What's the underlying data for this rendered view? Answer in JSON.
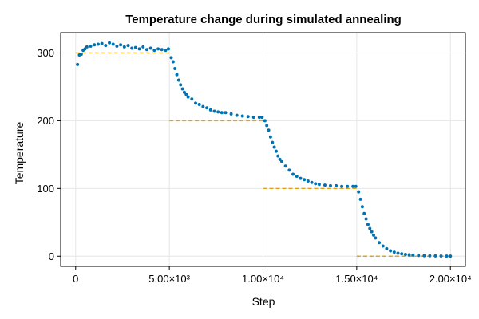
{
  "chart_data": {
    "type": "scatter",
    "title": "Temperature change during simulated annealing",
    "xlabel": "Step",
    "ylabel": "Temperature",
    "xlim": [
      -800,
      20800
    ],
    "ylim": [
      -15,
      330
    ],
    "x_ticks": [
      {
        "value": 0,
        "label": "0"
      },
      {
        "value": 5000,
        "label": "5.00×10³"
      },
      {
        "value": 10000,
        "label": "1.00×10⁴"
      },
      {
        "value": 15000,
        "label": "1.50×10⁴"
      },
      {
        "value": 20000,
        "label": "2.00×10⁴"
      }
    ],
    "y_ticks": [
      {
        "value": 0,
        "label": "0"
      },
      {
        "value": 100,
        "label": "100"
      },
      {
        "value": 200,
        "label": "200"
      },
      {
        "value": 300,
        "label": "300"
      }
    ],
    "grid": true,
    "legend": "none",
    "colors": {
      "points": "#0072b2",
      "targets": "#e6a11b"
    },
    "series": [
      {
        "kind": "points",
        "x": [
          100,
          200,
          300,
          400,
          500,
          600,
          800,
          1000,
          1200,
          1400,
          1600,
          1800,
          2000,
          2200,
          2400,
          2600,
          2800,
          3000,
          3200,
          3400,
          3600,
          3800,
          4000,
          4200,
          4400,
          4600,
          4800,
          4950,
          5100,
          5200,
          5300,
          5400,
          5500,
          5600,
          5700,
          5800,
          5900,
          6000,
          6200,
          6400,
          6600,
          6800,
          7000,
          7200,
          7400,
          7600,
          7800,
          8000,
          8300,
          8600,
          8900,
          9200,
          9500,
          9800,
          9950,
          10100,
          10200,
          10300,
          10400,
          10500,
          10600,
          10700,
          10800,
          10900,
          11000,
          11200,
          11400,
          11600,
          11800,
          12000,
          12200,
          12400,
          12600,
          12800,
          13000,
          13300,
          13600,
          13900,
          14200,
          14500,
          14800,
          14950,
          15100,
          15200,
          15300,
          15400,
          15500,
          15600,
          15700,
          15800,
          15900,
          16000,
          16200,
          16400,
          16600,
          16800,
          17000,
          17200,
          17400,
          17600,
          17800,
          18000,
          18300,
          18600,
          18900,
          19200,
          19500,
          19800,
          20000
        ],
        "y": [
          283,
          297,
          298,
          304,
          306,
          309,
          310,
          312,
          313,
          314,
          311,
          315,
          313,
          310,
          312,
          309,
          311,
          307,
          308,
          306,
          309,
          305,
          307,
          304,
          306,
          305,
          304,
          306,
          293,
          287,
          277,
          268,
          260,
          253,
          247,
          242,
          239,
          235,
          232,
          226,
          224,
          221,
          219,
          216,
          214,
          213,
          212,
          212,
          210,
          208,
          207,
          206,
          205,
          205,
          205,
          200,
          193,
          186,
          176,
          168,
          161,
          155,
          148,
          143,
          140,
          133,
          127,
          121,
          118,
          115,
          113,
          111,
          109,
          107,
          106,
          105,
          104,
          104,
          103,
          103,
          103,
          103,
          95,
          84,
          73,
          63,
          55,
          47,
          41,
          36,
          31,
          27,
          20,
          15,
          11,
          8,
          6,
          4.5,
          3.5,
          2.7,
          2.1,
          1.6,
          1.1,
          0.8,
          0.6,
          0.4,
          0.3,
          0.2,
          0.1
        ]
      },
      {
        "kind": "targets",
        "segments": [
          {
            "x": [
              0,
              5000
            ],
            "y": 300
          },
          {
            "x": [
              5000,
              10000
            ],
            "y": 200
          },
          {
            "x": [
              10000,
              15000
            ],
            "y": 100
          },
          {
            "x": [
              15000,
              20000
            ],
            "y": 0
          }
        ]
      }
    ]
  }
}
